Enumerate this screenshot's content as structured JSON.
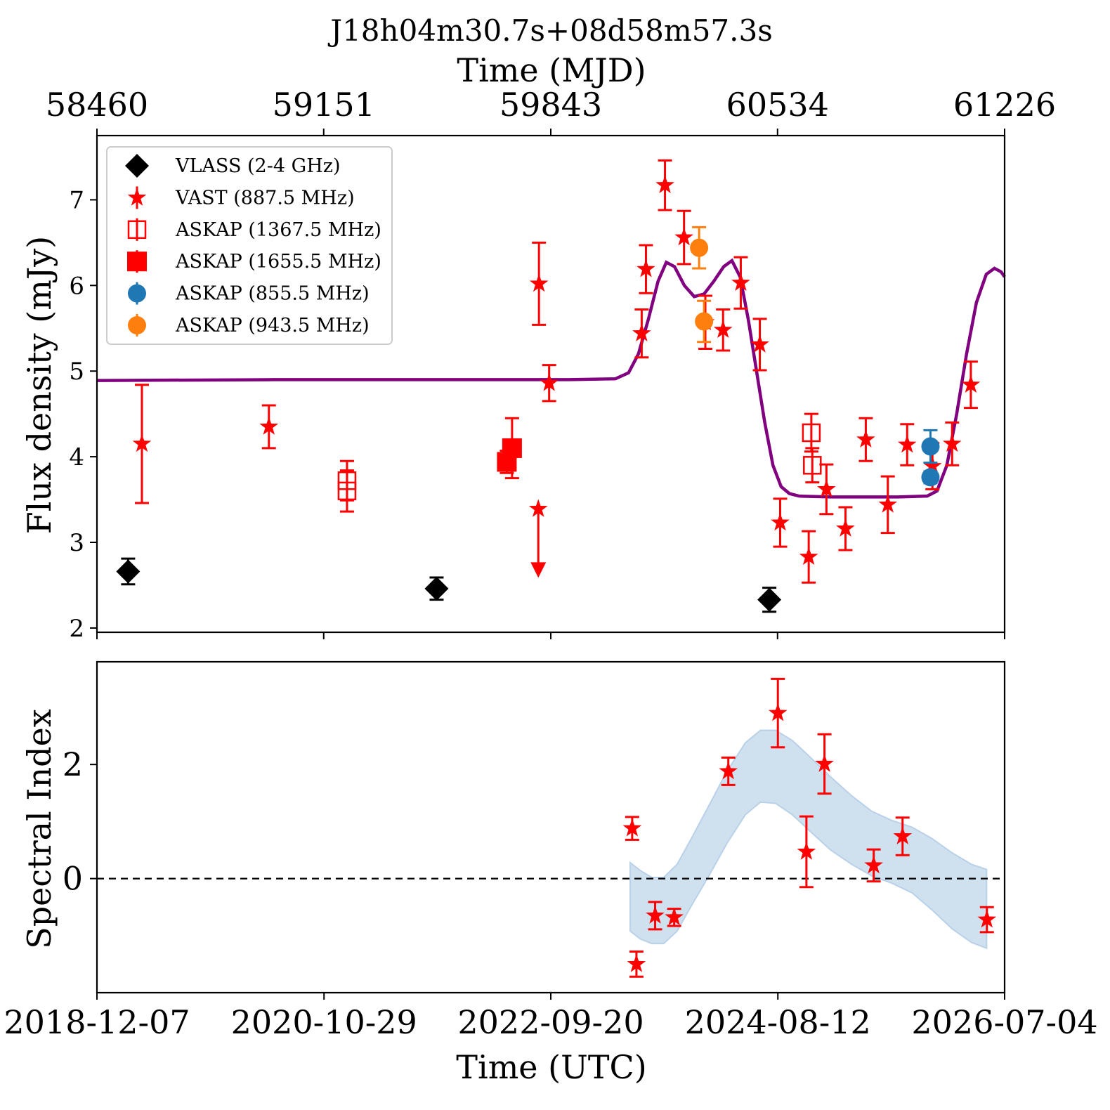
{
  "chart_data": [
    {
      "type": "scatter",
      "title": "J18h04m30.7s+08d58m57.3s",
      "top_xlabel": "Time (MJD)",
      "top_xticks": [
        "58460",
        "59151",
        "59843",
        "60534",
        "61226"
      ],
      "top_xlim": [
        58460,
        61226
      ],
      "ylabel": "Flux density (mJy)",
      "yticks": [
        "2",
        "3",
        "4",
        "5",
        "6",
        "7"
      ],
      "ylim": [
        1.95,
        7.75
      ],
      "legend_position": "top-left",
      "series": [
        {
          "name": "VLASS (2-4 GHz)",
          "marker": "diamond",
          "color": "#000000",
          "points": [
            {
              "x": 58555,
              "y": 2.66,
              "err": 0.15
            },
            {
              "x": 59495,
              "y": 2.46,
              "err": 0.13
            },
            {
              "x": 60509,
              "y": 2.33,
              "err": 0.14
            }
          ]
        },
        {
          "name": "VAST (887.5 MHz)",
          "marker": "star",
          "color": "#ff0000",
          "points": [
            {
              "x": 58597,
              "y": 4.15,
              "err": 0.69
            },
            {
              "x": 58984,
              "y": 4.35,
              "err": 0.25
            },
            {
              "x": 59807,
              "y": 6.02,
              "err": 0.48
            },
            {
              "x": 59838,
              "y": 4.86,
              "err": 0.21
            },
            {
              "x": 60120,
              "y": 5.44,
              "err": 0.28
            },
            {
              "x": 60133,
              "y": 6.19,
              "err": 0.28
            },
            {
              "x": 60191,
              "y": 7.17,
              "err": 0.29
            },
            {
              "x": 60249,
              "y": 6.56,
              "err": 0.31
            },
            {
              "x": 60314,
              "y": 5.57,
              "err": 0.31
            },
            {
              "x": 60368,
              "y": 5.48,
              "err": 0.24
            },
            {
              "x": 60422,
              "y": 6.03,
              "err": 0.3
            },
            {
              "x": 60480,
              "y": 5.31,
              "err": 0.3
            },
            {
              "x": 60542,
              "y": 3.23,
              "err": 0.28
            },
            {
              "x": 60629,
              "y": 2.83,
              "err": 0.3
            },
            {
              "x": 60683,
              "y": 3.62,
              "err": 0.29
            },
            {
              "x": 60741,
              "y": 3.16,
              "err": 0.25
            },
            {
              "x": 60803,
              "y": 4.2,
              "err": 0.25
            },
            {
              "x": 60870,
              "y": 3.44,
              "err": 0.33
            },
            {
              "x": 60929,
              "y": 4.14,
              "err": 0.24
            },
            {
              "x": 61006,
              "y": 3.89,
              "err": 0.27
            },
            {
              "x": 61066,
              "y": 4.15,
              "err": 0.25
            },
            {
              "x": 61123,
              "y": 4.84,
              "err": 0.27
            }
          ]
        },
        {
          "name": "VAST upper limit",
          "marker": "star-upper-limit",
          "color": "#ff0000",
          "points": [
            {
              "x": 59805,
              "y": 3.39,
              "to": 2.62
            }
          ]
        },
        {
          "name": "ASKAP (1367.5 MHz)",
          "marker": "open-square",
          "color": "#ff0000",
          "points": [
            {
              "x": 59222,
              "y": 3.6,
              "err": 0.24
            },
            {
              "x": 59222,
              "y": 3.72,
              "err": 0.23
            },
            {
              "x": 60637,
              "y": 4.28,
              "err": 0.22
            },
            {
              "x": 60640,
              "y": 3.9,
              "err": 0.2
            }
          ]
        },
        {
          "name": "ASKAP (1655.5 MHz)",
          "marker": "filled-square",
          "color": "#ff0000",
          "points": [
            {
              "x": 59709,
              "y": 3.94,
              "err": 0.13
            },
            {
              "x": 59725,
              "y": 4.1,
              "err": 0.35
            }
          ]
        },
        {
          "name": "ASKAP (855.5 MHz)",
          "marker": "circle",
          "color": "#1f77b4",
          "points": [
            {
              "x": 61000,
              "y": 4.12,
              "err": 0.19
            },
            {
              "x": 61000,
              "y": 3.76,
              "err": 0.07
            }
          ]
        },
        {
          "name": "ASKAP (943.5 MHz)",
          "marker": "circle",
          "color": "#ff7f0e",
          "points": [
            {
              "x": 60295,
              "y": 6.44,
              "err": 0.24
            },
            {
              "x": 60310,
              "y": 5.58,
              "err": 0.24
            }
          ]
        },
        {
          "name": "",
          "marker": "line",
          "color": "#800080",
          "points": [
            {
              "x": 58460,
              "y": 4.89
            },
            {
              "x": 59000,
              "y": 4.9
            },
            {
              "x": 59500,
              "y": 4.9
            },
            {
              "x": 59900,
              "y": 4.9
            },
            {
              "x": 60040,
              "y": 4.91
            },
            {
              "x": 60080,
              "y": 4.98
            },
            {
              "x": 60110,
              "y": 5.2
            },
            {
              "x": 60140,
              "y": 5.6
            },
            {
              "x": 60170,
              "y": 6.05
            },
            {
              "x": 60195,
              "y": 6.27
            },
            {
              "x": 60220,
              "y": 6.22
            },
            {
              "x": 60250,
              "y": 6.0
            },
            {
              "x": 60280,
              "y": 5.87
            },
            {
              "x": 60310,
              "y": 5.9
            },
            {
              "x": 60340,
              "y": 6.05
            },
            {
              "x": 60370,
              "y": 6.22
            },
            {
              "x": 60395,
              "y": 6.29
            },
            {
              "x": 60420,
              "y": 6.1
            },
            {
              "x": 60445,
              "y": 5.6
            },
            {
              "x": 60470,
              "y": 5.0
            },
            {
              "x": 60495,
              "y": 4.4
            },
            {
              "x": 60520,
              "y": 3.9
            },
            {
              "x": 60545,
              "y": 3.65
            },
            {
              "x": 60570,
              "y": 3.57
            },
            {
              "x": 60600,
              "y": 3.54
            },
            {
              "x": 60700,
              "y": 3.53
            },
            {
              "x": 60900,
              "y": 3.53
            },
            {
              "x": 60990,
              "y": 3.54
            },
            {
              "x": 61020,
              "y": 3.6
            },
            {
              "x": 61050,
              "y": 3.9
            },
            {
              "x": 61080,
              "y": 4.5
            },
            {
              "x": 61110,
              "y": 5.2
            },
            {
              "x": 61140,
              "y": 5.8
            },
            {
              "x": 61170,
              "y": 6.13
            },
            {
              "x": 61195,
              "y": 6.2
            },
            {
              "x": 61215,
              "y": 6.16
            },
            {
              "x": 61226,
              "y": 6.1
            }
          ]
        }
      ]
    },
    {
      "type": "scatter",
      "xlabel": "Time (UTC)",
      "xticks": [
        "2018-12-07",
        "2020-10-29",
        "2022-09-20",
        "2024-08-12",
        "2026-07-04"
      ],
      "xlim": [
        "2018-12-07",
        "2026-07-04"
      ],
      "ylabel": "Spectral Index",
      "yticks": [
        "0",
        "2"
      ],
      "ylim": [
        -2.0,
        3.8
      ],
      "reference_line": {
        "y": 0,
        "style": "dashed"
      },
      "series": [
        {
          "name": "",
          "marker": "star",
          "color": "#ff0000",
          "points": [
            {
              "x": "2023-05-26",
              "y": 0.88,
              "err": 0.2
            },
            {
              "x": "2023-06-08",
              "y": -1.5,
              "err": 0.22
            },
            {
              "x": "2023-08-04",
              "y": -0.65,
              "err": 0.24
            },
            {
              "x": "2023-10-01",
              "y": -0.68,
              "err": 0.15
            },
            {
              "x": "2024-03-14",
              "y": 1.88,
              "err": 0.24
            },
            {
              "x": "2024-08-12",
              "y": 2.9,
              "err": 0.6
            },
            {
              "x": "2024-11-07",
              "y": 0.47,
              "err": 0.62
            },
            {
              "x": "2025-01-01",
              "y": 2.01,
              "err": 0.52
            },
            {
              "x": "2025-05-31",
              "y": 0.23,
              "err": 0.28
            },
            {
              "x": "2025-08-27",
              "y": 0.74,
              "err": 0.33
            },
            {
              "x": "2026-05-11",
              "y": -0.72,
              "err": 0.22
            }
          ]
        },
        {
          "name": "",
          "marker": "band",
          "color": "#cfe0ef",
          "band": [
            {
              "x": "2023-05-20",
              "lo": -0.92,
              "hi": 0.28
            },
            {
              "x": "2023-06-20",
              "lo": -1.06,
              "hi": 0.14
            },
            {
              "x": "2023-07-25",
              "lo": -1.14,
              "hi": 0.02
            },
            {
              "x": "2023-08-30",
              "lo": -1.14,
              "hi": 0.02
            },
            {
              "x": "2023-10-10",
              "lo": -0.92,
              "hi": 0.25
            },
            {
              "x": "2023-11-25",
              "lo": -0.45,
              "hi": 0.73
            },
            {
              "x": "2024-01-15",
              "lo": 0.05,
              "hi": 1.28
            },
            {
              "x": "2024-03-10",
              "lo": 0.62,
              "hi": 1.88
            },
            {
              "x": "2024-05-05",
              "lo": 1.12,
              "hi": 2.38
            },
            {
              "x": "2024-06-20",
              "lo": 1.34,
              "hi": 2.6
            },
            {
              "x": "2024-08-05",
              "lo": 1.32,
              "hi": 2.6
            },
            {
              "x": "2024-09-25",
              "lo": 1.12,
              "hi": 2.42
            },
            {
              "x": "2024-11-20",
              "lo": 0.82,
              "hi": 2.12
            },
            {
              "x": "2025-01-20",
              "lo": 0.5,
              "hi": 1.78
            },
            {
              "x": "2025-03-25",
              "lo": 0.25,
              "hi": 1.45
            },
            {
              "x": "2025-05-25",
              "lo": 0.05,
              "hi": 1.18
            },
            {
              "x": "2025-07-25",
              "lo": -0.08,
              "hi": 1.02
            },
            {
              "x": "2025-09-25",
              "lo": -0.25,
              "hi": 0.9
            },
            {
              "x": "2025-11-25",
              "lo": -0.55,
              "hi": 0.7
            },
            {
              "x": "2026-01-25",
              "lo": -0.88,
              "hi": 0.45
            },
            {
              "x": "2026-03-25",
              "lo": -1.12,
              "hi": 0.25
            },
            {
              "x": "2026-05-10",
              "lo": -1.22,
              "hi": 0.16
            }
          ]
        }
      ]
    }
  ]
}
